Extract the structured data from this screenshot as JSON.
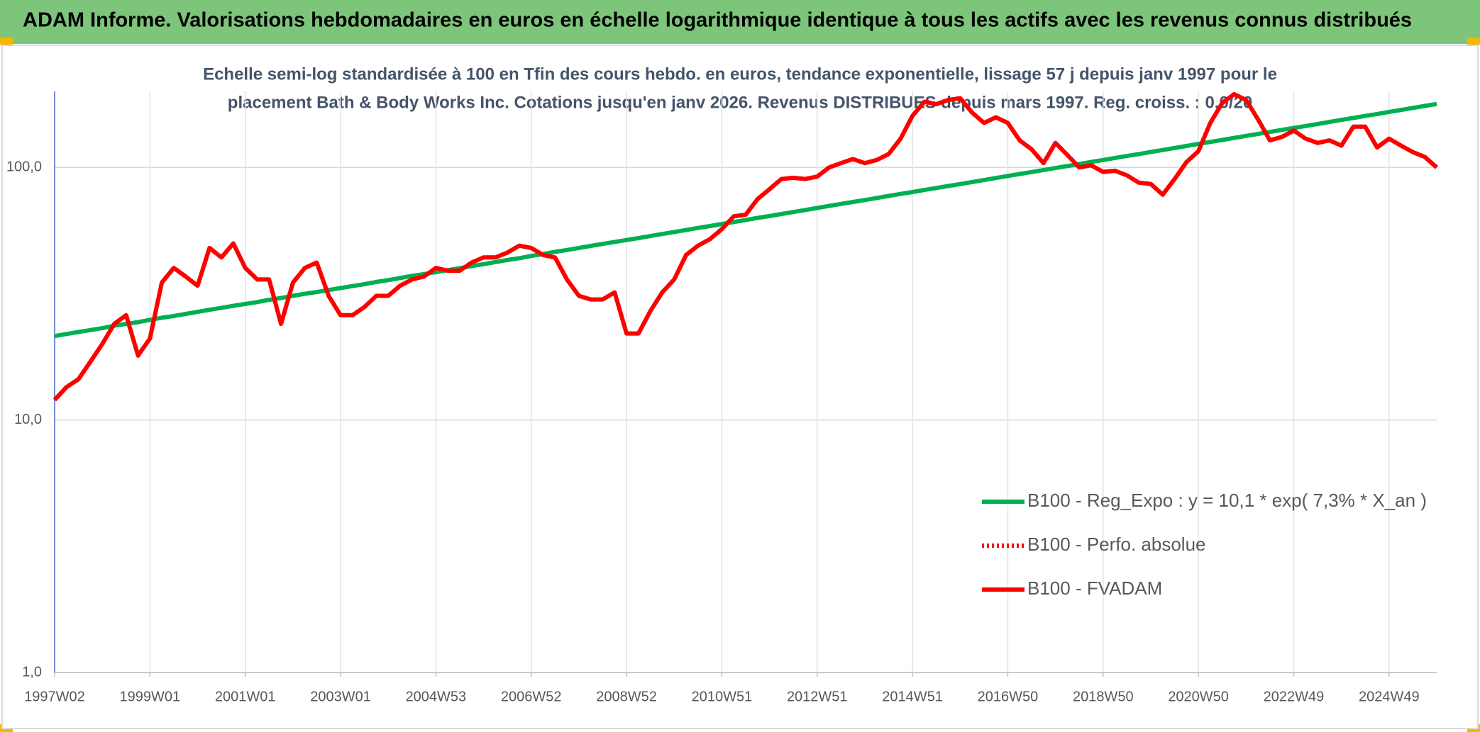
{
  "chart_data": {
    "type": "line",
    "title": "ADAM Informe. Valorisations hebdomadaires en euros en échelle logarithmique identique à tous les actifs avec les revenus connus distribués",
    "subtitle": [
      "Echelle semi-log standardisée à 100 en Tfin des cours hebdo. en euros, tendance exponentielle, lissage 57 j depuis janv 1997 pour le",
      "placement Bath & Body Works Inc. Cotations jusqu'en janv 2026. Revenus DISTRIBUES depuis mars 1997. Reg. croiss. : 0,0/20"
    ],
    "categories": [
      "1997W02",
      null,
      null,
      null,
      null,
      null,
      null,
      null,
      "1999W01",
      null,
      null,
      null,
      null,
      null,
      null,
      null,
      "2001W01",
      null,
      null,
      null,
      null,
      null,
      null,
      null,
      "2003W01",
      null,
      null,
      null,
      null,
      null,
      null,
      null,
      "2004W53",
      null,
      null,
      null,
      null,
      null,
      null,
      null,
      "2006W52",
      null,
      null,
      null,
      null,
      null,
      null,
      null,
      "2008W52",
      null,
      null,
      null,
      null,
      null,
      null,
      null,
      "2010W51",
      null,
      null,
      null,
      null,
      null,
      null,
      null,
      "2012W51",
      null,
      null,
      null,
      null,
      null,
      null,
      null,
      "2014W51",
      null,
      null,
      null,
      null,
      null,
      null,
      null,
      "2016W50",
      null,
      null,
      null,
      null,
      null,
      null,
      null,
      "2018W50",
      null,
      null,
      null,
      null,
      null,
      null,
      null,
      "2020W50",
      null,
      null,
      null,
      null,
      null,
      null,
      null,
      "2022W49",
      null,
      null,
      null,
      null,
      null,
      null,
      null,
      "2024W49",
      null,
      null,
      null,
      null
    ],
    "series": [
      {
        "name": "B100 - Reg_Expo : y = 10,1 * exp( 7,3% *  X_an )",
        "color": "#00b050",
        "style": "solid",
        "values": [
          21.5,
          21.9,
          22.3,
          22.7,
          23.1,
          23.6,
          24.0,
          24.4,
          24.9,
          25.4,
          25.8,
          26.3,
          26.8,
          27.3,
          27.8,
          28.3,
          28.8,
          29.3,
          29.9,
          30.4,
          31.0,
          31.6,
          32.1,
          32.7,
          33.3,
          33.9,
          34.5,
          35.2,
          35.8,
          36.5,
          37.2,
          37.8,
          38.5,
          39.2,
          39.9,
          40.7,
          41.4,
          42.2,
          43.0,
          43.7,
          44.6,
          45.4,
          46.3,
          47.1,
          48.0,
          48.9,
          49.8,
          50.7,
          51.6,
          52.5,
          53.5,
          54.5,
          55.5,
          56.5,
          57.6,
          58.6,
          59.7,
          60.8,
          61.9,
          63.1,
          64.2,
          65.4,
          66.6,
          67.8,
          69.1,
          70.4,
          71.7,
          73.0,
          74.3,
          75.7,
          77.1,
          78.5,
          79.9,
          81.4,
          82.9,
          84.4,
          85.9,
          87.5,
          89.1,
          90.8,
          92.5,
          94.2,
          95.9,
          97.7,
          99.5,
          101.3,
          103.2,
          105.1,
          107.0,
          109.0,
          111.0,
          113.0,
          115.1,
          117.2,
          119.4,
          121.6,
          123.9,
          126.2,
          128.5,
          130.9,
          133.3,
          135.7,
          138.2,
          140.8,
          143.3,
          145.9,
          148.6,
          151.4,
          154.2,
          157.0,
          159.9,
          162.8,
          165.9,
          168.9,
          172.1,
          175.2,
          178.4
        ]
      },
      {
        "name": "B100 - Perfo. absolue",
        "color": "#ff0000",
        "style": "dotted",
        "values": [
          12,
          13.5,
          14.5,
          17,
          20,
          24,
          26,
          18,
          21,
          35,
          40,
          37,
          34,
          48,
          44,
          50,
          40,
          36,
          36,
          24,
          35,
          40,
          42,
          31,
          26,
          26,
          28,
          31,
          31,
          34,
          36,
          37,
          40,
          39,
          39,
          42,
          44,
          44,
          46,
          49,
          48,
          45,
          44,
          36,
          31,
          30,
          30,
          32,
          22,
          22,
          27,
          32,
          36,
          45,
          49,
          52,
          57,
          64,
          65,
          75,
          82,
          90,
          91,
          90,
          92,
          100,
          104,
          108,
          104,
          107,
          113,
          130,
          160,
          182,
          178,
          185,
          188,
          165,
          150,
          158,
          150,
          128,
          118,
          104,
          125,
          112,
          100,
          102,
          96,
          97,
          93,
          87,
          86,
          78,
          90,
          105,
          116,
          150,
          180,
          195,
          185,
          155,
          128,
          132,
          140,
          130,
          125,
          128,
          122,
          145,
          145,
          120,
          130,
          122,
          115,
          110,
          100
        ]
      },
      {
        "name": "B100 - FVADAM",
        "color": "#ff0000",
        "style": "solid",
        "values": [
          12,
          13.5,
          14.5,
          17,
          20,
          24,
          26,
          18,
          21,
          35,
          40,
          37,
          34,
          48,
          44,
          50,
          40,
          36,
          36,
          24,
          35,
          40,
          42,
          31,
          26,
          26,
          28,
          31,
          31,
          34,
          36,
          37,
          40,
          39,
          39,
          42,
          44,
          44,
          46,
          49,
          48,
          45,
          44,
          36,
          31,
          30,
          30,
          32,
          22,
          22,
          27,
          32,
          36,
          45,
          49,
          52,
          57,
          64,
          65,
          75,
          82,
          90,
          91,
          90,
          92,
          100,
          104,
          108,
          104,
          107,
          113,
          130,
          160,
          182,
          178,
          185,
          188,
          165,
          150,
          158,
          150,
          128,
          118,
          104,
          125,
          112,
          100,
          102,
          96,
          97,
          93,
          87,
          86,
          78,
          90,
          105,
          116,
          150,
          180,
          195,
          185,
          155,
          128,
          132,
          140,
          130,
          125,
          128,
          122,
          145,
          145,
          120,
          130,
          122,
          115,
          110,
          100
        ]
      }
    ],
    "yscale": "log",
    "ylim": [
      1,
      200
    ],
    "yticks": [
      {
        "value": 1,
        "label": "1,0"
      },
      {
        "value": 10,
        "label": "10,0"
      },
      {
        "value": 100,
        "label": "100,0"
      }
    ],
    "grid": true,
    "legend": "lower right"
  }
}
